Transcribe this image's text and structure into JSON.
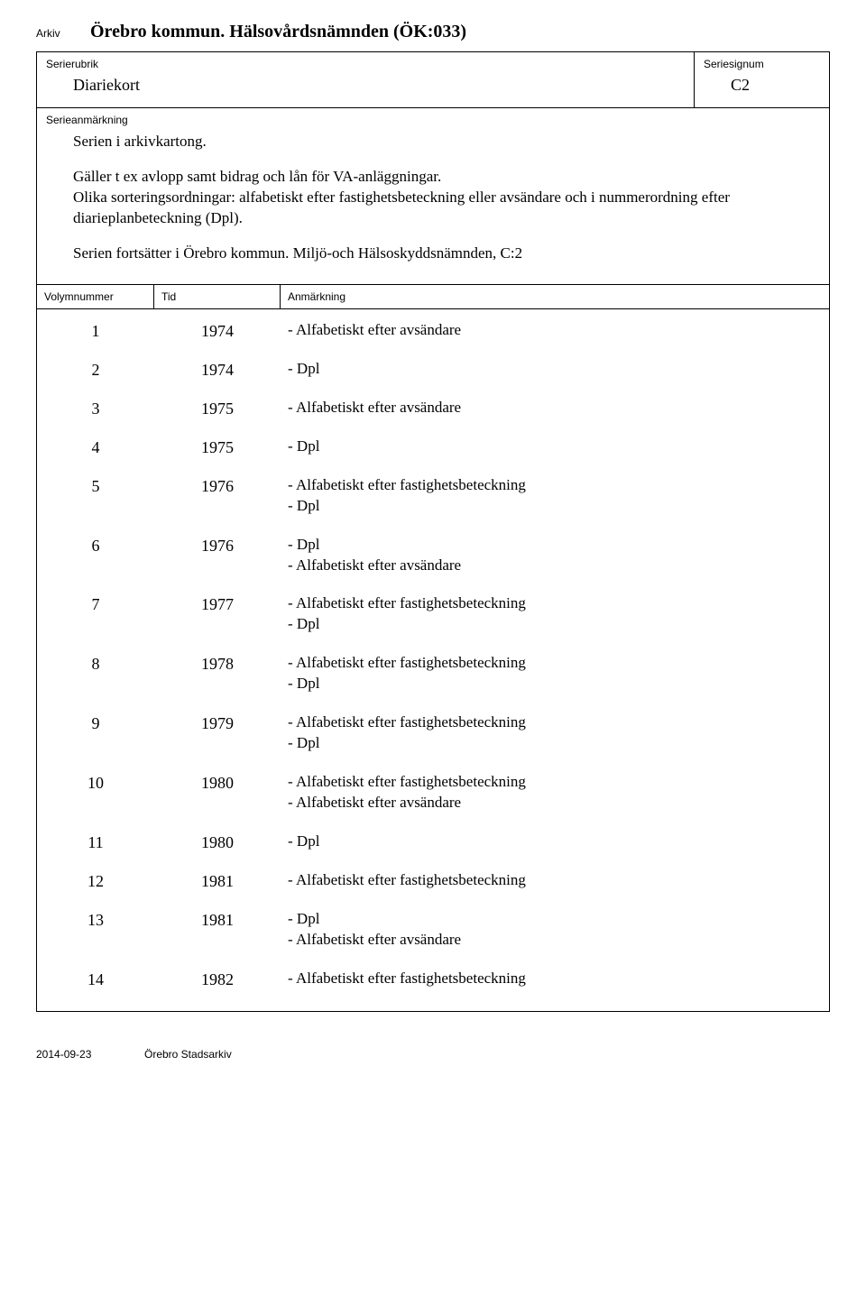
{
  "labels": {
    "arkiv": "Arkiv",
    "serierubrik": "Serierubrik",
    "seriesignum": "Seriesignum",
    "serieanmarkning": "Serieanmärkning",
    "volymnummer": "Volymnummer",
    "tid": "Tid",
    "anmarkning": "Anmärkning"
  },
  "header": {
    "archive_title": "Örebro kommun. Hälsovårdsnämnden (ÖK:033)",
    "serierubrik": "Diariekort",
    "seriesignum": "C2"
  },
  "series_note": {
    "p1": "Serien i arkivkartong.",
    "p2": "Gäller t ex avlopp samt bidrag och lån för VA-anläggningar.",
    "p3": "Olika sorteringsordningar: alfabetiskt efter fastighetsbeteckning eller avsändare och i nummerordning efter diarieplanbeteckning (Dpl).",
    "p4": "Serien fortsätter i Örebro kommun. Miljö-och Hälsoskyddsnämnden, C:2"
  },
  "volumes": [
    {
      "num": "1",
      "tid": "1974",
      "anm": "- Alfabetiskt efter avsändare"
    },
    {
      "num": "2",
      "tid": "1974",
      "anm": "- Dpl"
    },
    {
      "num": "3",
      "tid": "1975",
      "anm": "- Alfabetiskt efter avsändare"
    },
    {
      "num": "4",
      "tid": "1975",
      "anm": "- Dpl"
    },
    {
      "num": "5",
      "tid": "1976",
      "anm": "- Alfabetiskt efter fastighetsbeteckning\n- Dpl"
    },
    {
      "num": "6",
      "tid": "1976",
      "anm": "- Dpl\n- Alfabetiskt efter avsändare"
    },
    {
      "num": "7",
      "tid": "1977",
      "anm": "- Alfabetiskt efter fastighetsbeteckning\n- Dpl"
    },
    {
      "num": "8",
      "tid": "1978",
      "anm": "- Alfabetiskt efter fastighetsbeteckning\n- Dpl"
    },
    {
      "num": "9",
      "tid": "1979",
      "anm": "- Alfabetiskt efter fastighetsbeteckning\n- Dpl"
    },
    {
      "num": "10",
      "tid": "1980",
      "anm": "- Alfabetiskt efter fastighetsbeteckning\n- Alfabetiskt efter avsändare"
    },
    {
      "num": "11",
      "tid": "1980",
      "anm": "- Dpl"
    },
    {
      "num": "12",
      "tid": "1981",
      "anm": "- Alfabetiskt efter fastighetsbeteckning"
    },
    {
      "num": "13",
      "tid": "1981",
      "anm": "- Dpl\n- Alfabetiskt efter avsändare"
    },
    {
      "num": "14",
      "tid": "1982",
      "anm": "- Alfabetiskt efter fastighetsbeteckning"
    }
  ],
  "footer": {
    "date": "2014-09-23",
    "org": "Örebro Stadsarkiv"
  }
}
